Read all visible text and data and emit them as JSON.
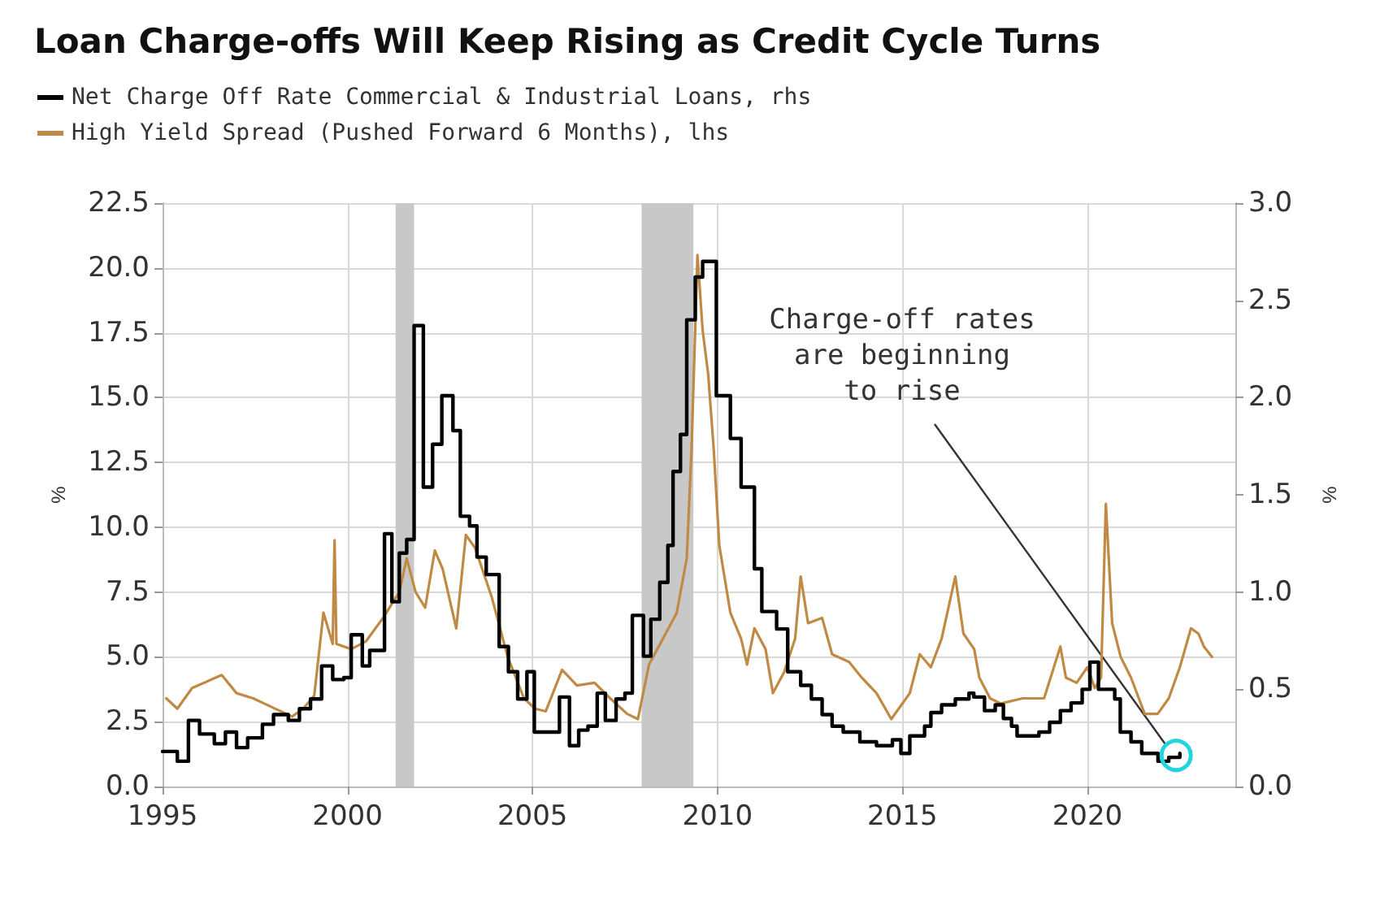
{
  "chart_data": {
    "type": "line",
    "title": "Loan Charge-offs Will Keep Rising as Credit Cycle Turns",
    "ylabel": "%",
    "y2label": "%",
    "annotations": [
      {
        "text": "Charge-off rates\nare beginning\nto rise",
        "x": 2022.4,
        "y": 1.2
      }
    ],
    "xlim": [
      1995,
      2024
    ],
    "xticks": [
      1995,
      2000,
      2005,
      2010,
      2015,
      2020
    ],
    "ylim": [
      0,
      22.5
    ],
    "yticks": [
      {
        "value": 0,
        "label": "0.0"
      },
      2.5,
      {
        "value": 5,
        "label": "5.0"
      },
      7.5,
      {
        "value": 10,
        "label": "10.0"
      },
      12.5,
      {
        "value": 15,
        "label": "15.0"
      },
      17.5,
      {
        "value": 20,
        "label": "20.0"
      },
      22.5
    ],
    "y2lim": [
      0,
      3
    ],
    "y2ticks": [
      {
        "value": 0,
        "label": "0.0"
      },
      0.5,
      {
        "value": 1,
        "label": "1.0"
      },
      1.5,
      {
        "value": 2,
        "label": "2.0"
      },
      2.5,
      {
        "value": 3,
        "label": "3.0"
      }
    ],
    "grid": true,
    "legend": "top left",
    "line_style": "solid",
    "marker": "none",
    "bands": [
      {
        "axis": "x",
        "from": 2001.3,
        "to": 2001.8,
        "color": "#c8c8c8"
      },
      {
        "axis": "x",
        "from": 2007.95,
        "to": 2009.35,
        "color": "#c8c8c8"
      }
    ],
    "series": [
      {
        "name": "Net Charge Off Rate Commercial & Industrial Loans, rhs",
        "type": "step",
        "axis": "y2",
        "color": "#000000",
        "x": [
          1995.0,
          1995.4,
          1995.7,
          1996.0,
          1996.4,
          1996.7,
          1997.0,
          1997.3,
          1997.7,
          1998.0,
          1998.4,
          1998.7,
          1999.0,
          1999.3,
          1999.6,
          1999.9,
          2000.1,
          2000.4,
          2000.6,
          2000.9,
          2001.0,
          2001.2,
          2001.4,
          2001.6,
          2001.8,
          2002.05,
          2002.3,
          2002.55,
          2002.85,
          2003.05,
          2003.3,
          2003.5,
          2003.75,
          2004.1,
          2004.35,
          2004.6,
          2004.85,
          2005.05,
          2005.5,
          2005.73,
          2006.0,
          2006.25,
          2006.5,
          2006.75,
          2006.97,
          2007.26,
          2007.5,
          2007.7,
          2008.0,
          2008.2,
          2008.44,
          2008.66,
          2008.8,
          2009.0,
          2009.17,
          2009.4,
          2009.6,
          2009.97,
          2010.35,
          2010.64,
          2011.0,
          2011.2,
          2011.6,
          2011.9,
          2012.25,
          2012.54,
          2012.83,
          2013.1,
          2013.4,
          2013.85,
          2014.3,
          2014.73,
          2014.96,
          2015.2,
          2015.6,
          2015.77,
          2016.06,
          2016.43,
          2016.8,
          2016.93,
          2017.22,
          2017.51,
          2017.73,
          2017.95,
          2018.1,
          2018.69,
          2018.98,
          2019.27,
          2019.56,
          2019.86,
          2020.07,
          2020.3,
          2020.74,
          2020.89,
          2021.18,
          2021.47,
          2021.91,
          2022.2,
          2022.5
        ],
        "values": [
          0.18,
          0.13,
          0.34,
          0.27,
          0.22,
          0.28,
          0.2,
          0.25,
          0.32,
          0.37,
          0.34,
          0.4,
          0.45,
          0.62,
          0.55,
          0.56,
          0.78,
          0.62,
          0.7,
          0.7,
          1.3,
          0.95,
          1.2,
          1.27,
          2.37,
          1.54,
          1.76,
          2.01,
          1.83,
          1.39,
          1.34,
          1.18,
          1.09,
          0.72,
          0.59,
          0.45,
          0.59,
          0.28,
          0.28,
          0.46,
          0.21,
          0.29,
          0.31,
          0.48,
          0.34,
          0.45,
          0.48,
          0.88,
          0.67,
          0.86,
          1.05,
          1.24,
          1.62,
          1.81,
          2.4,
          2.62,
          2.7,
          2.01,
          1.79,
          1.54,
          1.12,
          0.9,
          0.81,
          0.59,
          0.52,
          0.45,
          0.37,
          0.31,
          0.28,
          0.23,
          0.21,
          0.24,
          0.17,
          0.26,
          0.31,
          0.38,
          0.42,
          0.45,
          0.48,
          0.46,
          0.39,
          0.42,
          0.35,
          0.31,
          0.26,
          0.28,
          0.33,
          0.39,
          0.43,
          0.5,
          0.64,
          0.5,
          0.45,
          0.28,
          0.23,
          0.17,
          0.13,
          0.15,
          0.17
        ]
      },
      {
        "name": "High Yield Spread (Pushed Forward 6 Months), lhs",
        "color": "#c08a45",
        "x": [
          1995.1,
          1995.4,
          1995.8,
          1996.6,
          1997.0,
          1997.45,
          1997.9,
          1998.5,
          1998.8,
          1999.1,
          1999.35,
          1999.6,
          1999.65,
          1999.7,
          2000.1,
          2000.5,
          2000.96,
          2001.4,
          2001.6,
          2001.84,
          2002.1,
          2002.36,
          2002.57,
          2002.94,
          2003.2,
          2003.45,
          2003.9,
          2004.33,
          2004.77,
          2005.07,
          2005.36,
          2005.8,
          2006.2,
          2006.68,
          2007.1,
          2007.56,
          2007.85,
          2008.15,
          2008.6,
          2008.9,
          2009.17,
          2009.3,
          2009.46,
          2009.6,
          2009.75,
          2009.9,
          2010.05,
          2010.35,
          2010.64,
          2010.8,
          2011.0,
          2011.3,
          2011.5,
          2011.8,
          2012.1,
          2012.25,
          2012.45,
          2012.83,
          2013.1,
          2013.56,
          2013.9,
          2014.3,
          2014.7,
          2015.2,
          2015.47,
          2015.77,
          2016.06,
          2016.43,
          2016.65,
          2016.94,
          2017.08,
          2017.37,
          2017.66,
          2018.25,
          2018.83,
          2019.27,
          2019.42,
          2019.71,
          2020.0,
          2020.2,
          2020.37,
          2020.5,
          2020.67,
          2020.9,
          2021.18,
          2021.55,
          2021.9,
          2022.2,
          2022.5,
          2022.8,
          2023.0,
          2023.15,
          2023.37
        ],
        "values": [
          3.4,
          3.0,
          3.8,
          4.3,
          3.6,
          3.4,
          3.1,
          2.7,
          3.0,
          3.5,
          6.7,
          5.5,
          9.5,
          5.5,
          5.3,
          5.6,
          6.5,
          7.5,
          8.8,
          7.5,
          6.9,
          9.1,
          8.4,
          6.1,
          9.7,
          9.2,
          7.3,
          5.0,
          3.4,
          3.0,
          2.9,
          4.5,
          3.9,
          4.0,
          3.4,
          2.8,
          2.6,
          4.7,
          5.9,
          6.7,
          8.8,
          13.0,
          20.5,
          17.6,
          15.9,
          13.0,
          9.3,
          6.7,
          5.7,
          4.7,
          6.1,
          5.3,
          3.6,
          4.4,
          5.7,
          8.1,
          6.3,
          6.5,
          5.1,
          4.8,
          4.2,
          3.6,
          2.6,
          3.6,
          5.1,
          4.6,
          5.7,
          8.1,
          5.9,
          5.3,
          4.2,
          3.4,
          3.2,
          3.4,
          3.4,
          5.4,
          4.2,
          4.0,
          4.6,
          3.8,
          4.2,
          10.9,
          6.3,
          5.0,
          4.2,
          2.8,
          2.8,
          3.4,
          4.6,
          6.1,
          5.9,
          5.4,
          5.0
        ]
      }
    ]
  }
}
